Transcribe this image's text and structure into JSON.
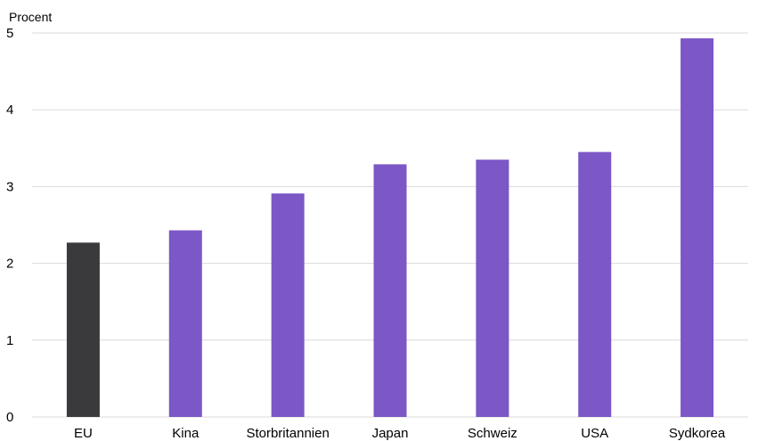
{
  "chart_data": {
    "type": "bar",
    "ylabel": "Procent",
    "ylim": [
      0,
      5
    ],
    "yticks": [
      0,
      1,
      2,
      3,
      4,
      5
    ],
    "grid": true,
    "categories": [
      "EU",
      "Kina",
      "Storbritannien",
      "Japan",
      "Schweiz",
      "USA",
      "Sydkorea"
    ],
    "values": [
      2.27,
      2.43,
      2.91,
      3.29,
      3.35,
      3.45,
      4.93
    ],
    "colors": [
      "#3a3a3d",
      "#7c57c6",
      "#7c57c6",
      "#7c57c6",
      "#7c57c6",
      "#7c57c6",
      "#7c57c6"
    ]
  }
}
